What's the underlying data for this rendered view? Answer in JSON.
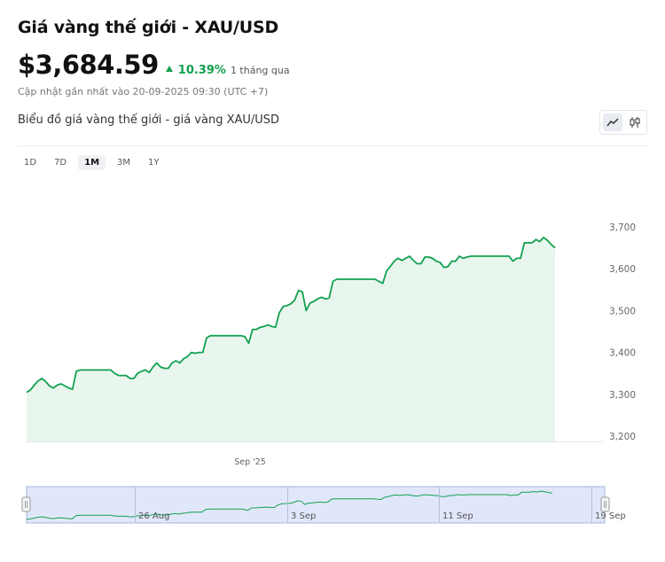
{
  "header": {
    "title": "Giá vàng thế giới - XAU/USD",
    "price": "$3,684.59",
    "change_pct": "10.39%",
    "change_period": "1 tháng qua",
    "updated": "Cập nhật gần nhất vào 20-09-2025 09:30 (UTC +7)"
  },
  "chart_section": {
    "title": "Biểu đồ giá vàng thế giới - giá vàng XAU/USD",
    "chart_type_icons": [
      "line-chart-icon",
      "candlestick-icon"
    ]
  },
  "ranges": [
    "1D",
    "7D",
    "1M",
    "3M",
    "1Y"
  ],
  "active_range": "1M",
  "colors": {
    "line": "#12a150",
    "area": "#e9f6ee",
    "up": "#12a150",
    "navigator": "#c8d4f5"
  },
  "chart_data": {
    "type": "area",
    "title": "",
    "xlabel": "",
    "ylabel": "",
    "ylim": [
      3200,
      3700
    ],
    "y_ticks": [
      "3,200",
      "3,300",
      "3,400",
      "3,500",
      "3,600",
      "3,700"
    ],
    "x_ticks": [
      "Sep '25"
    ],
    "navigator_ticks": [
      "26 Aug",
      "3 Sep",
      "11 Sep",
      "19 Sep"
    ],
    "grid": false,
    "series": [
      {
        "values": [
          3305,
          3310,
          3322,
          3332,
          3338,
          3330,
          3320,
          3315,
          3322,
          3325,
          3320,
          3315,
          3312,
          3355,
          3358,
          3358,
          3358,
          3358,
          3358,
          3358,
          3358,
          3358,
          3358,
          3350,
          3345,
          3345,
          3345,
          3338,
          3338,
          3350,
          3355,
          3358,
          3352,
          3365,
          3375,
          3365,
          3362,
          3362,
          3375,
          3380,
          3375,
          3385,
          3390,
          3400,
          3398,
          3400,
          3400,
          3435,
          3440,
          3440,
          3440,
          3440,
          3440,
          3440,
          3440,
          3440,
          3440,
          3438,
          3422,
          3455,
          3455,
          3460,
          3462,
          3466,
          3462,
          3460,
          3495,
          3510,
          3512,
          3516,
          3525,
          3548,
          3545,
          3500,
          3518,
          3522,
          3528,
          3532,
          3528,
          3530,
          3570,
          3575,
          3575,
          3575,
          3575,
          3575,
          3575,
          3575,
          3575,
          3575,
          3575,
          3575,
          3570,
          3565,
          3595,
          3606,
          3618,
          3625,
          3620,
          3625,
          3630,
          3620,
          3612,
          3612,
          3628,
          3628,
          3625,
          3618,
          3615,
          3603,
          3605,
          3618,
          3618,
          3630,
          3625,
          3628,
          3630,
          3630,
          3630,
          3630,
          3630,
          3630,
          3630,
          3630,
          3630,
          3630,
          3630,
          3618,
          3625,
          3625,
          3662,
          3662,
          3662,
          3670,
          3665,
          3675,
          3668,
          3658,
          3650
        ]
      }
    ]
  }
}
